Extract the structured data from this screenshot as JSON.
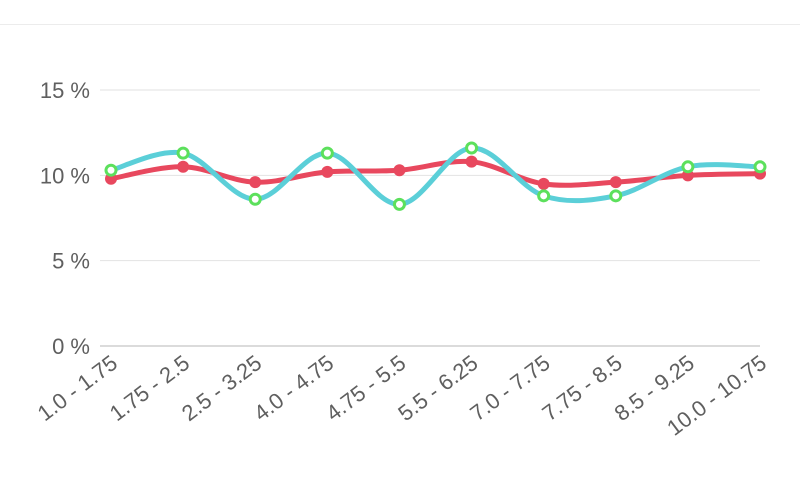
{
  "chart_data": {
    "type": "line",
    "categories": [
      "1.0 - 1.75",
      "1.75 - 2.5",
      "2.5 - 3.25",
      "4.0 - 4.75",
      "4.75 - 5.5",
      "5.5 - 6.25",
      "7.0 - 7.75",
      "7.75 - 8.5",
      "8.5 - 9.25",
      "10.0 - 10.75"
    ],
    "series": [
      {
        "values": [
          9.8,
          10.5,
          9.6,
          10.2,
          10.3,
          10.8,
          9.5,
          9.6,
          10.0,
          10.1
        ],
        "color": "#e8485e",
        "marker_color": "#e8485e"
      },
      {
        "values": [
          10.3,
          11.3,
          8.6,
          11.3,
          8.3,
          11.6,
          8.8,
          8.8,
          10.5,
          10.5
        ],
        "color": "#5bcfd8",
        "marker_color": "#5ce05c"
      }
    ],
    "yticks": [
      "0 %",
      "5 %",
      "10 %",
      "15 %"
    ],
    "ylim": [
      0,
      15
    ],
    "grid": true,
    "title": "",
    "xlabel": "",
    "ylabel": ""
  }
}
